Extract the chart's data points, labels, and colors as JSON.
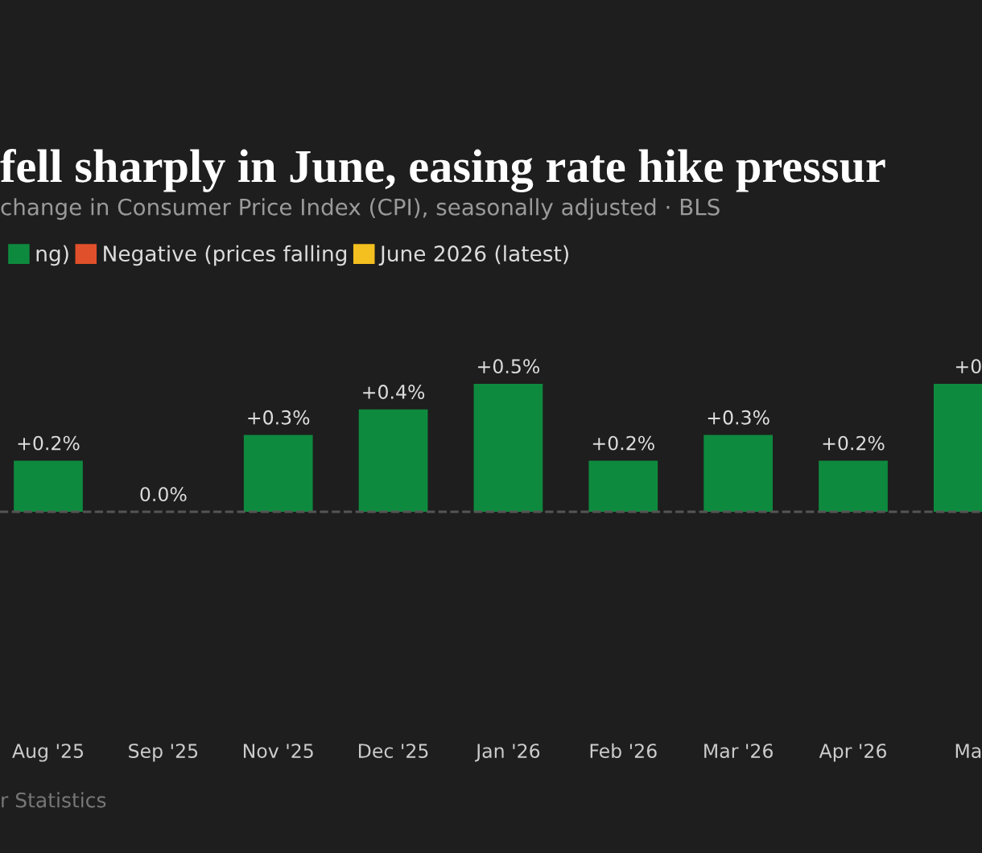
{
  "chart_data": {
    "type": "bar",
    "title": "fell sharply in June, easing rate hike pressur",
    "subtitle": "change in Consumer Price Index (CPI), seasonally adjusted · BLS",
    "categories": [
      "Aug '25",
      "Sep '25",
      "Nov '25",
      "Dec '25",
      "Jan '26",
      "Feb '26",
      "Mar '26",
      "Apr '26",
      "Ma"
    ],
    "series": [
      {
        "name": "ng)",
        "color": "#0e8a3e",
        "values": [
          0.2,
          0.0,
          0.3,
          0.4,
          0.5,
          0.2,
          0.3,
          0.2,
          0.5
        ],
        "value_labels": [
          "+0.2%",
          "0.0%",
          "+0.3%",
          "+0.4%",
          "+0.5%",
          "+0.2%",
          "+0.3%",
          "+0.2%",
          "+0"
        ]
      },
      {
        "name": "Negative (prices falling",
        "color": "#e0502a",
        "values": [
          null,
          null,
          null,
          null,
          null,
          null,
          null,
          null,
          null
        ]
      },
      {
        "name": "June 2026 (latest)",
        "color": "#f4c020",
        "values": [
          null,
          null,
          null,
          null,
          null,
          null,
          null,
          null,
          null
        ]
      }
    ],
    "tick_labels": "x",
    "legend": "top left",
    "grid": false,
    "ref_lines": [
      {
        "axis": "y",
        "value": 0,
        "line_style": "dashed",
        "color": "#555555"
      }
    ],
    "annotations": [
      "r Statistics"
    ]
  }
}
